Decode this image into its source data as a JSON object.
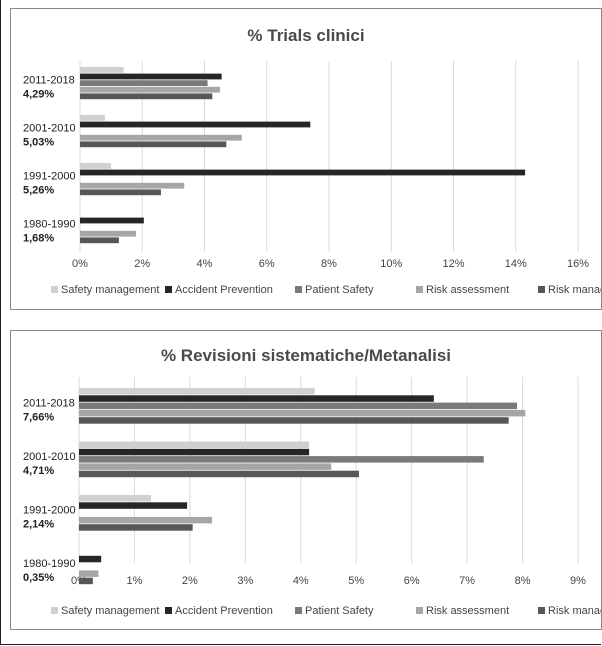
{
  "colors": {
    "Safety management": "#d0d0d0",
    "Accident Prevention": "#262626",
    "Patient Safety": "#7a7a7a",
    "Risk assessment": "#a6a6a6",
    "Risk management": "#575757",
    "grid": "#d9d9d9"
  },
  "chart_data": [
    {
      "type": "bar",
      "orientation": "horizontal",
      "title": "% Trials clinici",
      "categories": [
        "2011-2018",
        "2001-2010",
        "1991-2000",
        "1980-1990"
      ],
      "category_totals": [
        "4,29%",
        "5,03%",
        "5,26%",
        "1,68%"
      ],
      "xlim": [
        0,
        16
      ],
      "ticks": [
        0,
        2,
        4,
        6,
        8,
        10,
        12,
        14,
        16
      ],
      "tick_labels": [
        "0%",
        "2%",
        "4%",
        "6%",
        "8%",
        "10%",
        "12%",
        "14%",
        "16%"
      ],
      "grid": true,
      "legend": "bottom",
      "series": [
        {
          "name": "Safety management",
          "values": [
            1.4,
            0.8,
            1.0,
            0
          ]
        },
        {
          "name": "Accident Prevention",
          "values": [
            4.55,
            7.4,
            14.3,
            2.05
          ]
        },
        {
          "name": "Patient Safety",
          "values": [
            4.1,
            0,
            0,
            0
          ]
        },
        {
          "name": "Risk assessment",
          "values": [
            4.5,
            5.2,
            3.35,
            1.8
          ]
        },
        {
          "name": "Risk management",
          "values": [
            4.25,
            4.7,
            2.6,
            1.25
          ]
        }
      ]
    },
    {
      "type": "bar",
      "orientation": "horizontal",
      "title": "% Revisioni sistematiche/Metanalisi",
      "categories": [
        "2011-2018",
        "2001-2010",
        "1991-2000",
        "1980-1990"
      ],
      "category_totals": [
        "7,66%",
        "4,71%",
        "2,14%",
        "0,35%"
      ],
      "xlim": [
        0,
        9
      ],
      "ticks": [
        0,
        1,
        2,
        3,
        4,
        5,
        6,
        7,
        8,
        9
      ],
      "tick_labels": [
        "0%",
        "1%",
        "2%",
        "3%",
        "4%",
        "5%",
        "6%",
        "7%",
        "8%",
        "9%"
      ],
      "grid": true,
      "legend": "bottom",
      "series": [
        {
          "name": "Safety management",
          "values": [
            4.25,
            4.15,
            1.3,
            0
          ]
        },
        {
          "name": "Accident Prevention",
          "values": [
            6.4,
            4.15,
            1.95,
            0.4
          ]
        },
        {
          "name": "Patient Safety",
          "values": [
            7.9,
            7.3,
            0,
            0
          ]
        },
        {
          "name": "Risk assessment",
          "values": [
            8.05,
            4.55,
            2.4,
            0.35
          ]
        },
        {
          "name": "Risk management",
          "values": [
            7.75,
            5.05,
            2.05,
            0.25
          ]
        }
      ]
    }
  ]
}
